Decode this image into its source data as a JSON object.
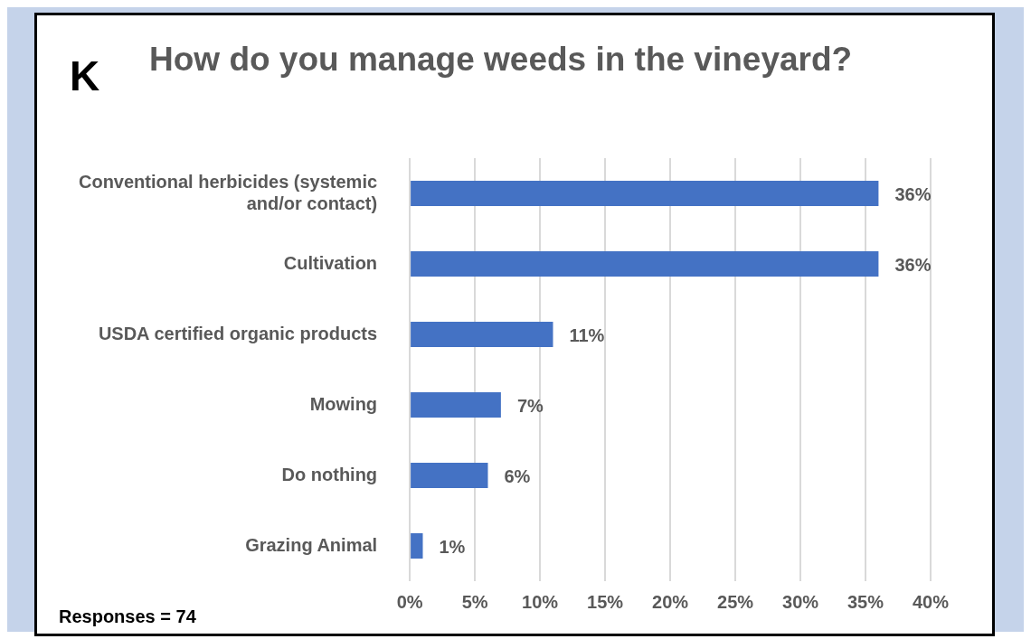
{
  "chart_data": {
    "type": "bar",
    "orientation": "horizontal",
    "title": "How do you manage weeds in the vineyard?",
    "annotations": [
      "K",
      "Responses = 74"
    ],
    "categories": [
      "Conventional herbicides (systemic and/or contact)",
      "Cultivation",
      "USDA certified organic products",
      "Mowing",
      "Do nothing",
      "Grazing Animal"
    ],
    "values": [
      36,
      36,
      11,
      7,
      6,
      1
    ],
    "value_labels": [
      "36%",
      "36%",
      "11%",
      "7%",
      "6%",
      "1%"
    ],
    "color": "#4472c4",
    "xlim": [
      0,
      40
    ],
    "xticks": [
      {
        "value": 0,
        "label": "0%"
      },
      {
        "value": 5,
        "label": "5%"
      },
      {
        "value": 10,
        "label": "10%"
      },
      {
        "value": 15,
        "label": "15%"
      },
      {
        "value": 20,
        "label": "20%"
      },
      {
        "value": 25,
        "label": "25%"
      },
      {
        "value": 30,
        "label": "30%"
      },
      {
        "value": 35,
        "label": "35%"
      },
      {
        "value": 40,
        "label": "40%"
      }
    ],
    "grid": "x",
    "legend": false
  }
}
